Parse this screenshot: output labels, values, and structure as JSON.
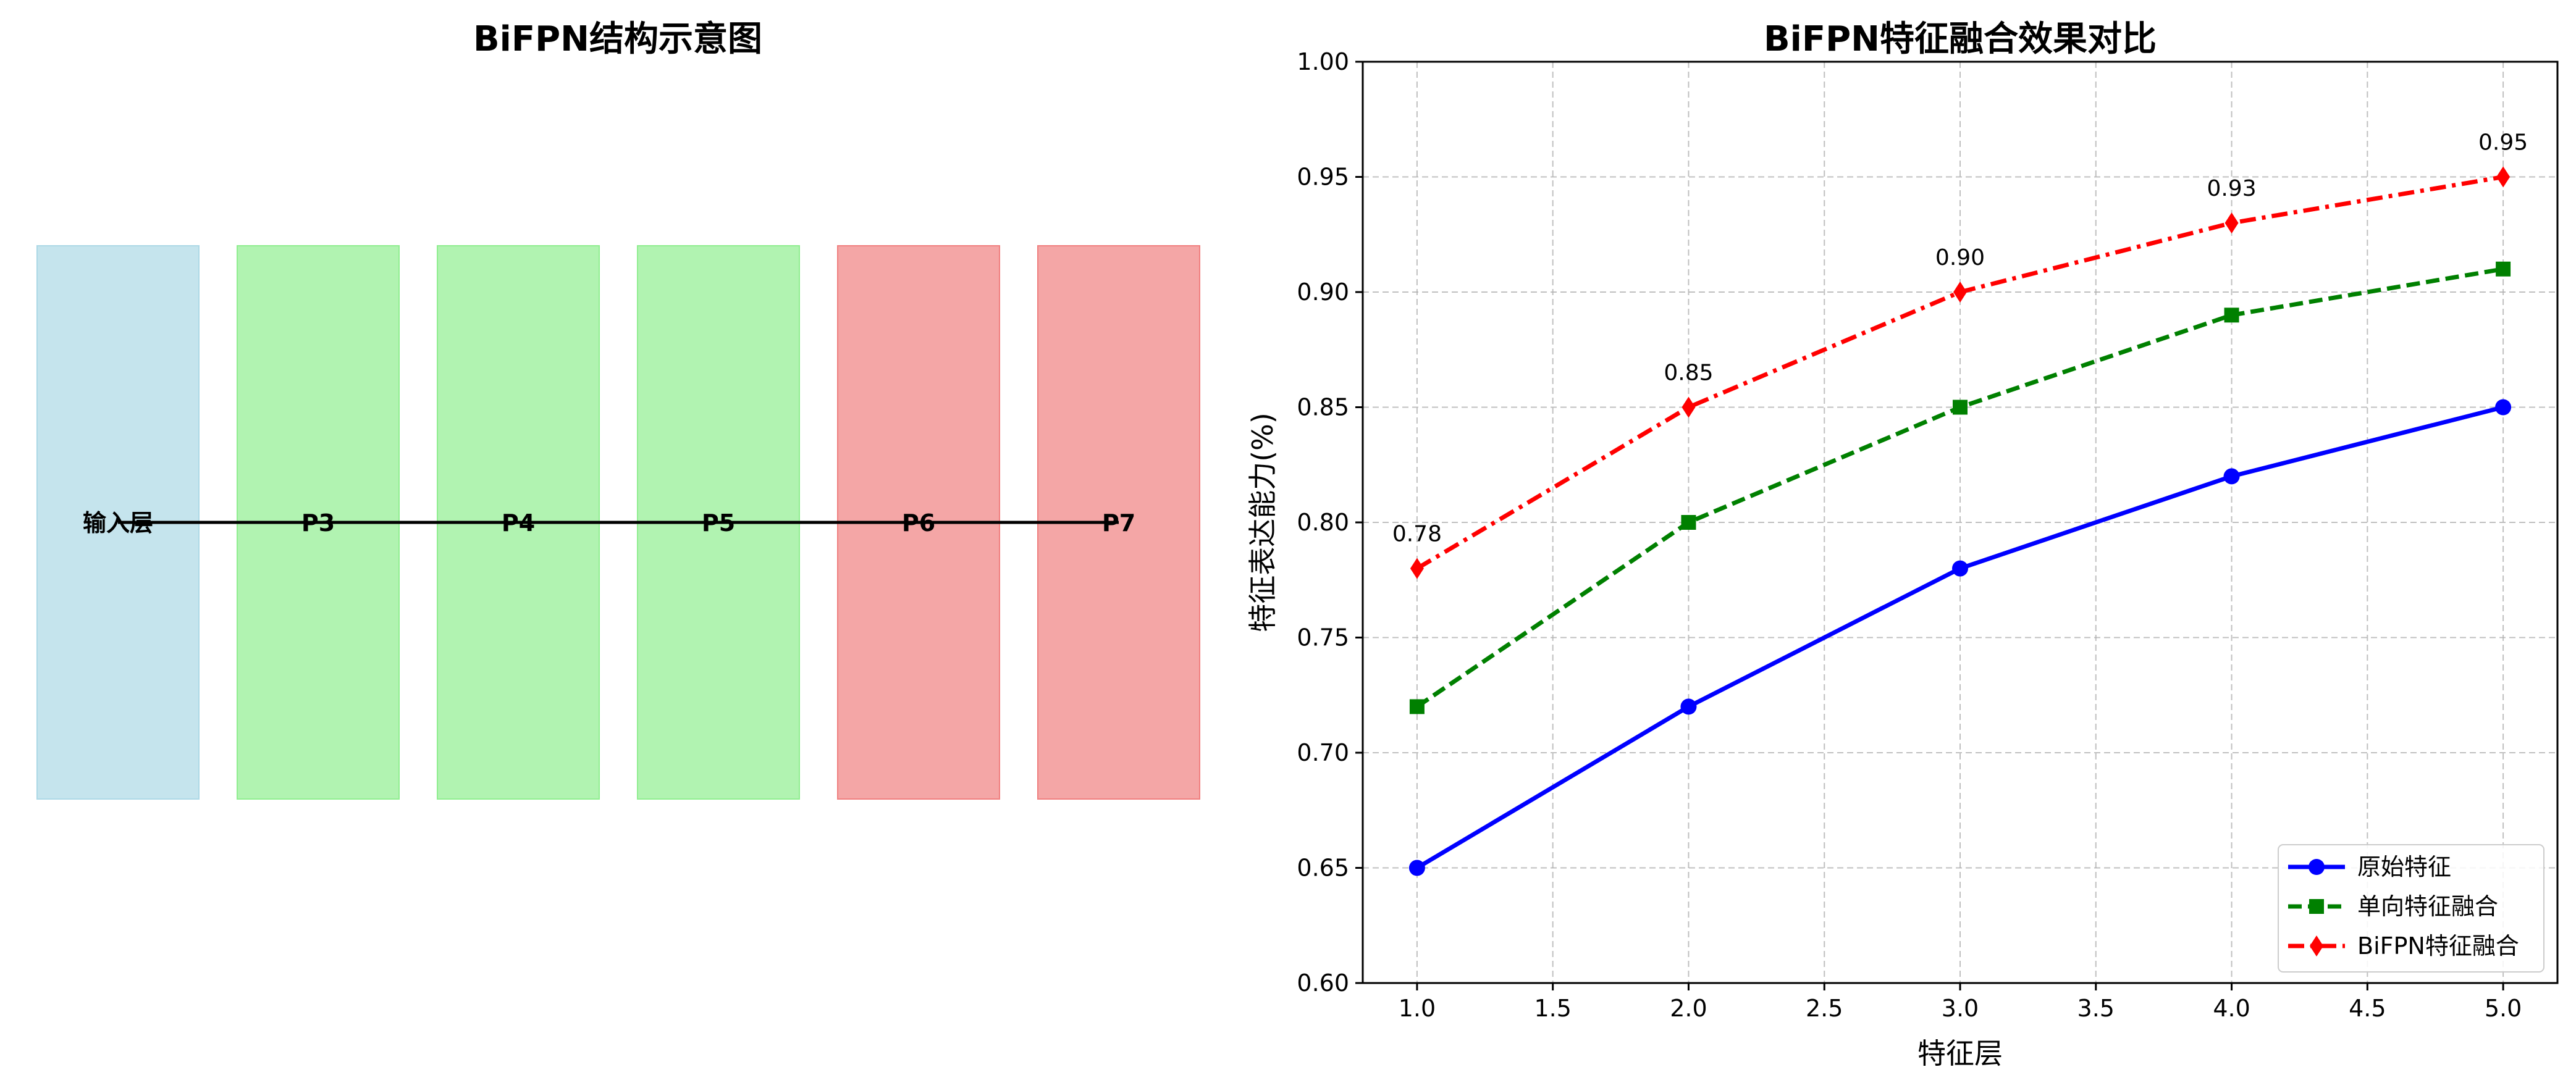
{
  "chart_data": [
    {
      "type": "diagram",
      "title": "BiFPN结构示意图",
      "layers": [
        {
          "label": "输入层",
          "color": "#add8e6"
        },
        {
          "label": "P3",
          "color": "#90ee90"
        },
        {
          "label": "P4",
          "color": "#90ee90"
        },
        {
          "label": "P5",
          "color": "#90ee90"
        },
        {
          "label": "P6",
          "color": "#f08080"
        },
        {
          "label": "P7",
          "color": "#f08080"
        }
      ],
      "connector_color": "#000000"
    },
    {
      "type": "line",
      "title": "BiFPN特征融合效果对比",
      "xlabel": "特征层",
      "ylabel": "特征表达能力(%)",
      "x": [
        1.0,
        2.0,
        3.0,
        4.0,
        5.0
      ],
      "xlim": [
        0.8,
        5.2
      ],
      "ylim": [
        0.6,
        1.0
      ],
      "xticks": [
        "1.0",
        "1.5",
        "2.0",
        "2.5",
        "3.0",
        "3.5",
        "4.0",
        "4.5",
        "5.0"
      ],
      "yticks": [
        "0.60",
        "0.65",
        "0.70",
        "0.75",
        "0.80",
        "0.85",
        "0.90",
        "0.95",
        "1.00"
      ],
      "grid": true,
      "legend_position": "lower-right",
      "series": [
        {
          "name": "原始特征",
          "values": [
            0.65,
            0.72,
            0.78,
            0.82,
            0.85
          ],
          "color": "#0000ff",
          "marker": "circle",
          "linestyle": "solid"
        },
        {
          "name": "单向特征融合",
          "values": [
            0.72,
            0.8,
            0.85,
            0.89,
            0.91
          ],
          "color": "#008000",
          "marker": "square",
          "linestyle": "dashed"
        },
        {
          "name": "BiFPN特征融合",
          "values": [
            0.78,
            0.85,
            0.9,
            0.93,
            0.95
          ],
          "color": "#ff0000",
          "marker": "diamond",
          "linestyle": "dashdot"
        }
      ],
      "annotations": [
        "0.78",
        "0.85",
        "0.90",
        "0.93",
        "0.95"
      ]
    }
  ]
}
